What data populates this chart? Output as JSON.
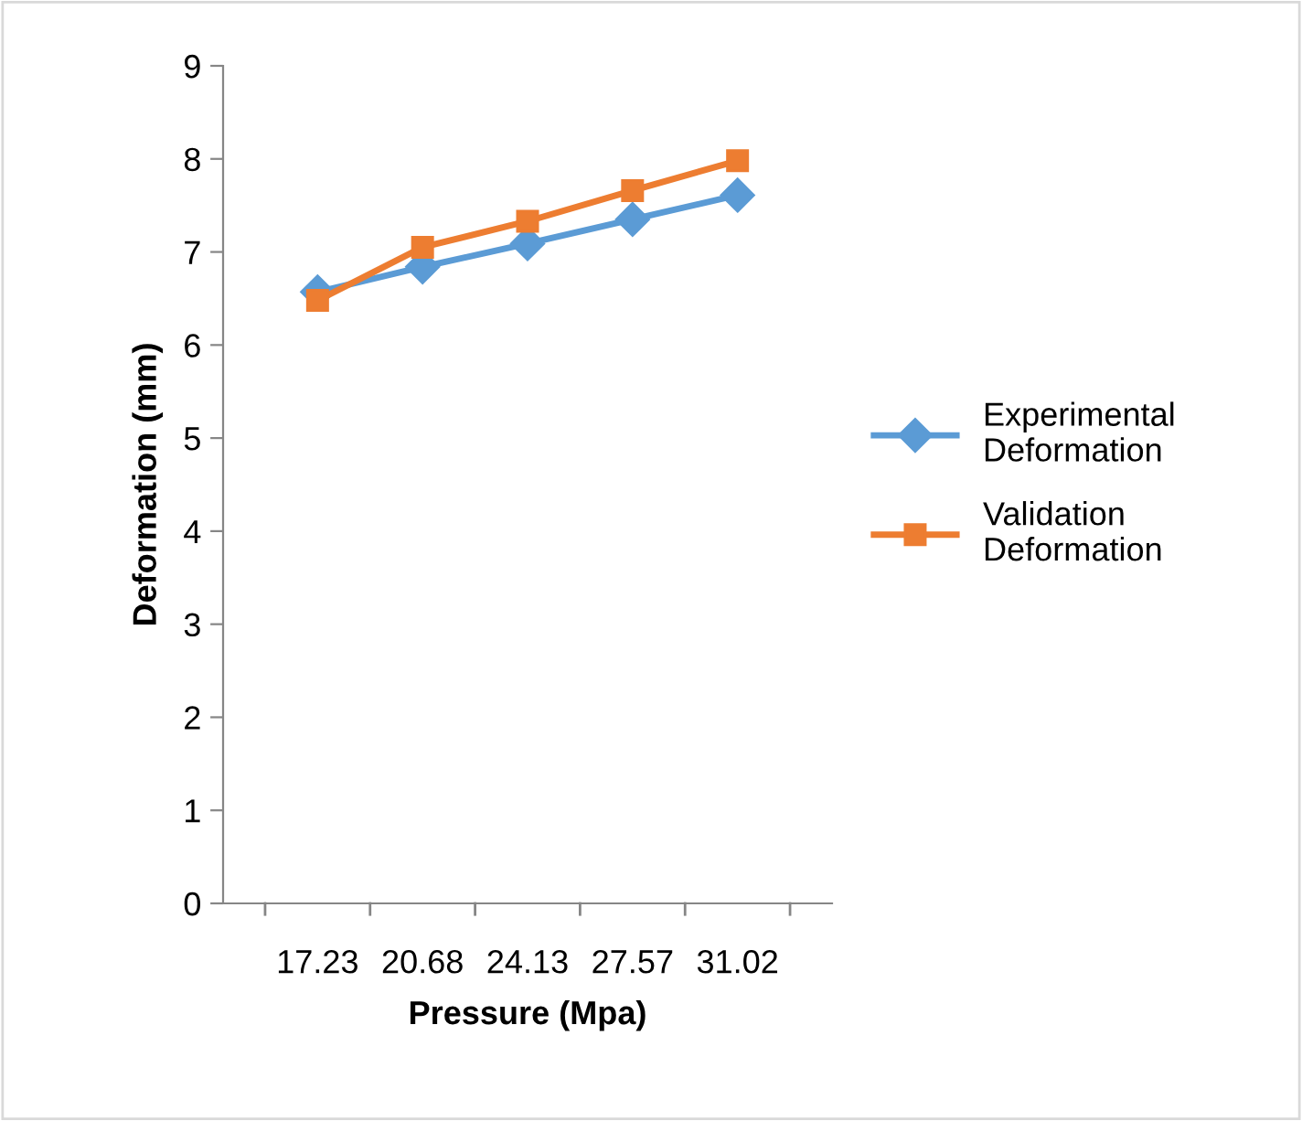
{
  "chart_data": {
    "type": "line",
    "xlabel": "Pressure (Mpa)",
    "ylabel": "Deformation (mm)",
    "categories": [
      "17.23",
      "20.68",
      "24.13",
      "27.57",
      "31.02"
    ],
    "series": [
      {
        "name": "Experimental Deformation",
        "color": "#5b9bd5",
        "marker": "diamond",
        "values": [
          6.57,
          6.84,
          7.09,
          7.35,
          7.61
        ]
      },
      {
        "name": "Validation Deformation",
        "color": "#ed7d31",
        "marker": "square",
        "values": [
          6.48,
          7.05,
          7.33,
          7.66,
          7.98
        ]
      }
    ],
    "ylim": [
      0,
      9
    ],
    "yticks": [
      0,
      1,
      2,
      3,
      4,
      5,
      6,
      7,
      8,
      9
    ],
    "grid": false,
    "legend": "right"
  }
}
